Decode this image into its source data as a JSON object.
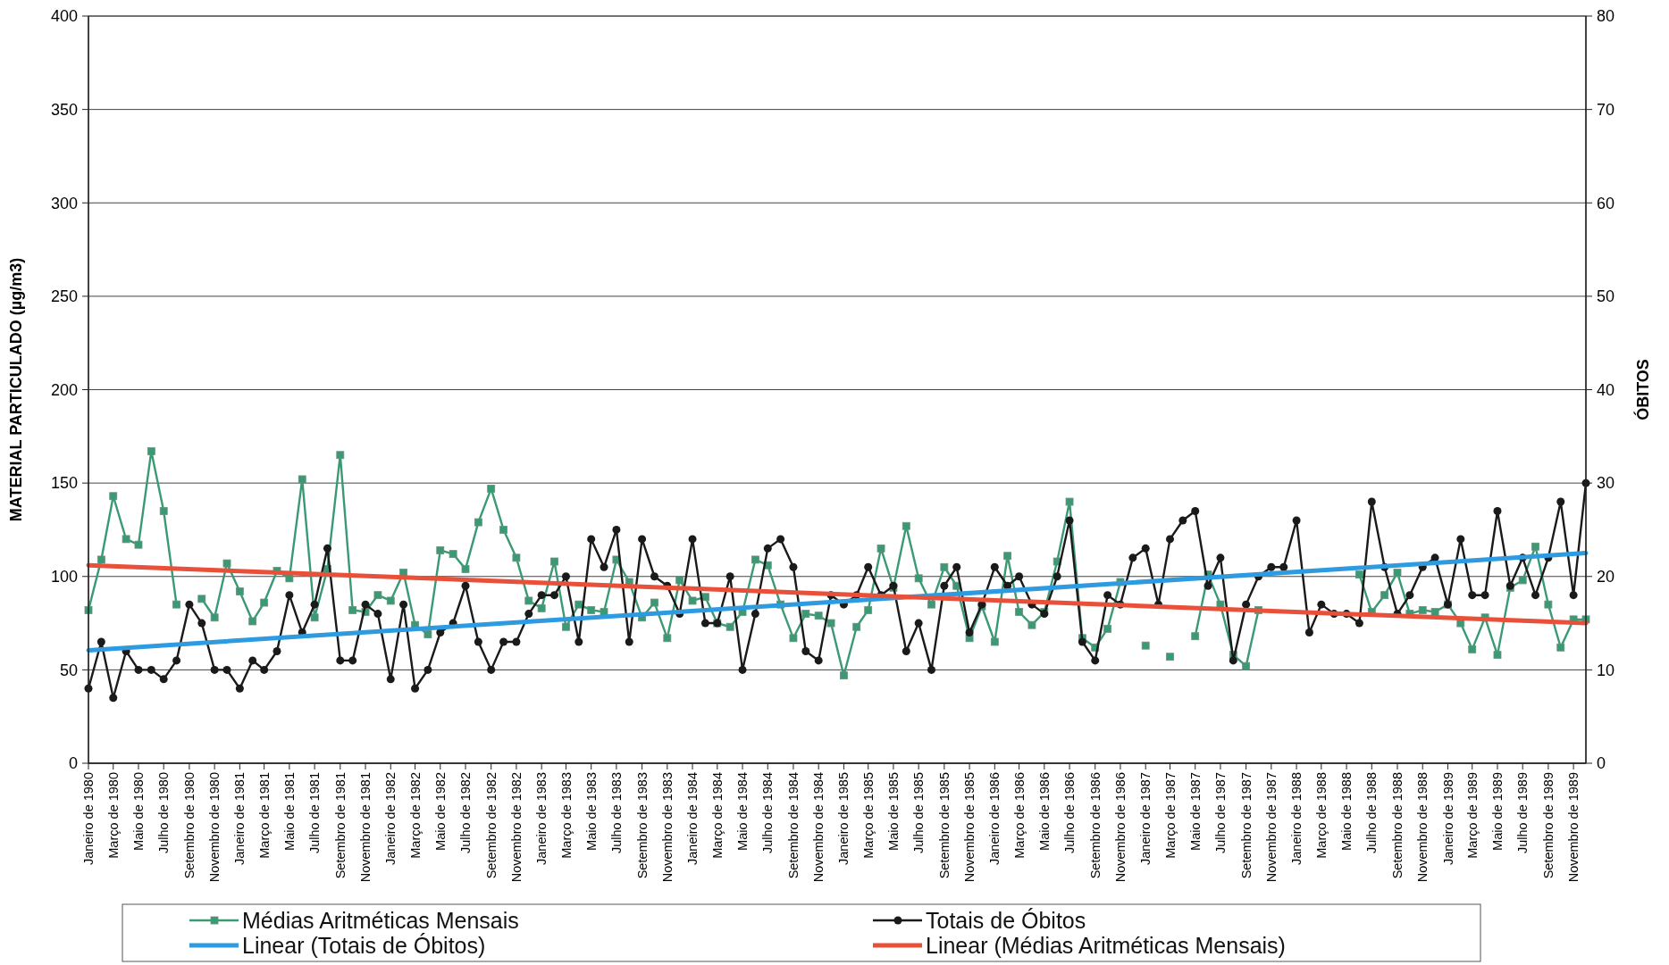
{
  "chart_data": {
    "type": "line",
    "ylabel": "MATERIAL PARTICULADO (µg/m3)",
    "y2label": "ÓBITOS",
    "xlim": [
      "1980-01",
      "1989-12"
    ],
    "xticks": [
      {
        "value": "1980-01",
        "label": "Janeiro de 1980"
      },
      {
        "value": "1980-03",
        "label": "Março de 1980"
      },
      {
        "value": "1980-05",
        "label": "Maio de 1980"
      },
      {
        "value": "1980-07",
        "label": "Julho de 1980"
      },
      {
        "value": "1980-09",
        "label": "Setembro de 1980"
      },
      {
        "value": "1980-11",
        "label": "Novembro de 1980"
      },
      {
        "value": "1981-01",
        "label": "Janeiro de 1981"
      },
      {
        "value": "1981-03",
        "label": "Março de 1981"
      },
      {
        "value": "1981-05",
        "label": "Maio de 1981"
      },
      {
        "value": "1981-07",
        "label": "Julho de 1981"
      },
      {
        "value": "1981-09",
        "label": "Setembro de 1981"
      },
      {
        "value": "1981-11",
        "label": "Novembro de 1981"
      },
      {
        "value": "1982-01",
        "label": "Janeiro de 1982"
      },
      {
        "value": "1982-03",
        "label": "Março de 1982"
      },
      {
        "value": "1982-05",
        "label": "Maio de 1982"
      },
      {
        "value": "1982-07",
        "label": "Julho de 1982"
      },
      {
        "value": "1982-09",
        "label": "Setembro de 1982"
      },
      {
        "value": "1982-11",
        "label": "Novembro de 1982"
      },
      {
        "value": "1983-01",
        "label": "Janeiro de 1983"
      },
      {
        "value": "1983-03",
        "label": "Março de 1983"
      },
      {
        "value": "1983-05",
        "label": "Maio de 1983"
      },
      {
        "value": "1983-07",
        "label": "Julho de 1983"
      },
      {
        "value": "1983-09",
        "label": "Setembro de 1983"
      },
      {
        "value": "1983-11",
        "label": "Novembro de 1983"
      },
      {
        "value": "1984-01",
        "label": "Janeiro de 1984"
      },
      {
        "value": "1984-03",
        "label": "Março de 1984"
      },
      {
        "value": "1984-05",
        "label": "Maio de 1984"
      },
      {
        "value": "1984-07",
        "label": "Julho de 1984"
      },
      {
        "value": "1984-09",
        "label": "Setembro de 1984"
      },
      {
        "value": "1984-11",
        "label": "Novembro de 1984"
      },
      {
        "value": "1985-01",
        "label": "Janeiro de 1985"
      },
      {
        "value": "1985-03",
        "label": "Março de 1985"
      },
      {
        "value": "1985-05",
        "label": "Maio de 1985"
      },
      {
        "value": "1985-07",
        "label": "Julho de 1985"
      },
      {
        "value": "1985-09",
        "label": "Setembro de 1985"
      },
      {
        "value": "1985-11",
        "label": "Novembro de 1985"
      },
      {
        "value": "1986-01",
        "label": "Janeiro de 1986"
      },
      {
        "value": "1986-03",
        "label": "Março de 1986"
      },
      {
        "value": "1986-05",
        "label": "Maio de 1986"
      },
      {
        "value": "1986-07",
        "label": "Julho de 1986"
      },
      {
        "value": "1986-09",
        "label": "Setembro de 1986"
      },
      {
        "value": "1986-11",
        "label": "Novembro de 1986"
      },
      {
        "value": "1987-01",
        "label": "Janeiro de 1987"
      },
      {
        "value": "1987-03",
        "label": "Março de 1987"
      },
      {
        "value": "1987-05",
        "label": "Maio de 1987"
      },
      {
        "value": "1987-07",
        "label": "Julho de 1987"
      },
      {
        "value": "1987-09",
        "label": "Setembro de 1987"
      },
      {
        "value": "1987-11",
        "label": "Novembro de 1987"
      },
      {
        "value": "1988-01",
        "label": "Janeiro de 1988"
      },
      {
        "value": "1988-03",
        "label": "Março de 1988"
      },
      {
        "value": "1988-05",
        "label": "Maio de 1988"
      },
      {
        "value": "1988-07",
        "label": "Julho de 1988"
      },
      {
        "value": "1988-09",
        "label": "Setembro de 1988"
      },
      {
        "value": "1988-11",
        "label": "Novembro de 1988"
      },
      {
        "value": "1989-01",
        "label": "Janeiro de 1989"
      },
      {
        "value": "1989-03",
        "label": "Março de 1989"
      },
      {
        "value": "1989-05",
        "label": "Maio de 1989"
      },
      {
        "value": "1989-07",
        "label": "Julho de 1989"
      },
      {
        "value": "1989-09",
        "label": "Setembro de 1989"
      },
      {
        "value": "1989-11",
        "label": "Novembro de 1989"
      }
    ],
    "ylim": [
      0,
      400
    ],
    "yticks": [
      0,
      50,
      100,
      150,
      200,
      250,
      300,
      350,
      400
    ],
    "y2lim": [
      0,
      80
    ],
    "y2ticks": [
      0,
      10,
      20,
      30,
      40,
      50,
      60,
      70,
      80
    ],
    "x": [
      "1980-01",
      "1980-02",
      "1980-03",
      "1980-04",
      "1980-05",
      "1980-06",
      "1980-07",
      "1980-08",
      "1980-09",
      "1980-10",
      "1980-11",
      "1980-12",
      "1981-01",
      "1981-02",
      "1981-03",
      "1981-04",
      "1981-05",
      "1981-06",
      "1981-07",
      "1981-08",
      "1981-09",
      "1981-10",
      "1981-11",
      "1981-12",
      "1982-01",
      "1982-02",
      "1982-03",
      "1982-04",
      "1982-05",
      "1982-06",
      "1982-07",
      "1982-08",
      "1982-09",
      "1982-10",
      "1982-11",
      "1982-12",
      "1983-01",
      "1983-02",
      "1983-03",
      "1983-04",
      "1983-05",
      "1983-06",
      "1983-07",
      "1983-08",
      "1983-09",
      "1983-10",
      "1983-11",
      "1983-12",
      "1984-01",
      "1984-02",
      "1984-03",
      "1984-04",
      "1984-05",
      "1984-06",
      "1984-07",
      "1984-08",
      "1984-09",
      "1984-10",
      "1984-11",
      "1984-12",
      "1985-01",
      "1985-02",
      "1985-03",
      "1985-04",
      "1985-05",
      "1985-06",
      "1985-07",
      "1985-08",
      "1985-09",
      "1985-10",
      "1985-11",
      "1985-12",
      "1986-01",
      "1986-02",
      "1986-03",
      "1986-04",
      "1986-05",
      "1986-06",
      "1986-07",
      "1986-08",
      "1986-09",
      "1986-10",
      "1986-11",
      "1986-12",
      "1987-01",
      "1987-02",
      "1987-03",
      "1987-04",
      "1987-05",
      "1987-06",
      "1987-07",
      "1987-08",
      "1987-09",
      "1987-10",
      "1987-11",
      "1987-12",
      "1988-01",
      "1988-02",
      "1988-03",
      "1988-04",
      "1988-05",
      "1988-06",
      "1988-07",
      "1988-08",
      "1988-09",
      "1988-10",
      "1988-11",
      "1988-12",
      "1989-01",
      "1989-02",
      "1989-03",
      "1989-04",
      "1989-05",
      "1989-06",
      "1989-07",
      "1989-08",
      "1989-09",
      "1989-10",
      "1989-11",
      "1989-12"
    ],
    "grid": "y",
    "legend": "bottom",
    "line_style": "solid",
    "series": [
      {
        "name": "Médias Aritméticas Mensais",
        "color": "#3a9a74",
        "marker": "square",
        "values": [
          82,
          109,
          143,
          120,
          117,
          167,
          135,
          85,
          null,
          88,
          78,
          107,
          92,
          76,
          86,
          103,
          99,
          152,
          78,
          104,
          165,
          82,
          81,
          90,
          87,
          102,
          74,
          69,
          114,
          112,
          104,
          129,
          147,
          125,
          110,
          87,
          83,
          108,
          73,
          85,
          82,
          81,
          109,
          97,
          78,
          86,
          67,
          98,
          87,
          89,
          75,
          73,
          81,
          109,
          106,
          85,
          67,
          80,
          79,
          75,
          47,
          73,
          82,
          115,
          94,
          127,
          99,
          85,
          105,
          95,
          67,
          84,
          65,
          111,
          81,
          74,
          81,
          108,
          140,
          67,
          62,
          72,
          97,
          null,
          63,
          null,
          57,
          null,
          68,
          101,
          85,
          58,
          52,
          82,
          null,
          null,
          null,
          null,
          null,
          null,
          null,
          101,
          81,
          90,
          102,
          80,
          82,
          81,
          85,
          75,
          61,
          78,
          58,
          94,
          98,
          116,
          85,
          62,
          77,
          77
        ]
      },
      {
        "name": "Totais de Óbitos",
        "color": "#1a1a1a",
        "marker": "circle",
        "axis": "y2",
        "values": [
          8,
          13,
          7,
          12,
          10,
          10,
          9,
          11,
          17,
          15,
          10,
          10,
          8,
          11,
          10,
          12,
          18,
          14,
          17,
          23,
          11,
          11,
          17,
          16,
          9,
          17,
          8,
          10,
          14,
          15,
          19,
          13,
          10,
          13,
          13,
          16,
          18,
          18,
          20,
          13,
          24,
          21,
          25,
          13,
          24,
          20,
          19,
          16,
          24,
          15,
          15,
          20,
          10,
          16,
          23,
          24,
          21,
          12,
          11,
          18,
          17,
          18,
          21,
          18,
          19,
          12,
          15,
          10,
          19,
          21,
          14,
          17,
          21,
          19,
          20,
          17,
          16,
          20,
          26,
          13,
          11,
          18,
          17,
          22,
          23,
          17,
          24,
          26,
          27,
          19,
          22,
          11,
          17,
          20,
          21,
          21,
          26,
          14,
          17,
          16,
          16,
          15,
          28,
          21,
          16,
          18,
          21,
          22,
          17,
          24,
          18,
          18,
          27,
          19,
          22,
          18,
          22,
          28,
          18,
          30
        ]
      },
      {
        "name": "Linear (Totais de Óbitos)",
        "color": "#2e9be0",
        "marker": "none",
        "axis": "y2",
        "x": [
          "1980-01",
          "1989-12"
        ],
        "values": [
          12.1,
          22.5
        ]
      },
      {
        "name": "Linear (Médias Aritméticas Mensais)",
        "color": "#e8503a",
        "marker": "none",
        "x": [
          "1980-01",
          "1989-12"
        ],
        "values": [
          106,
          75
        ]
      }
    ]
  }
}
